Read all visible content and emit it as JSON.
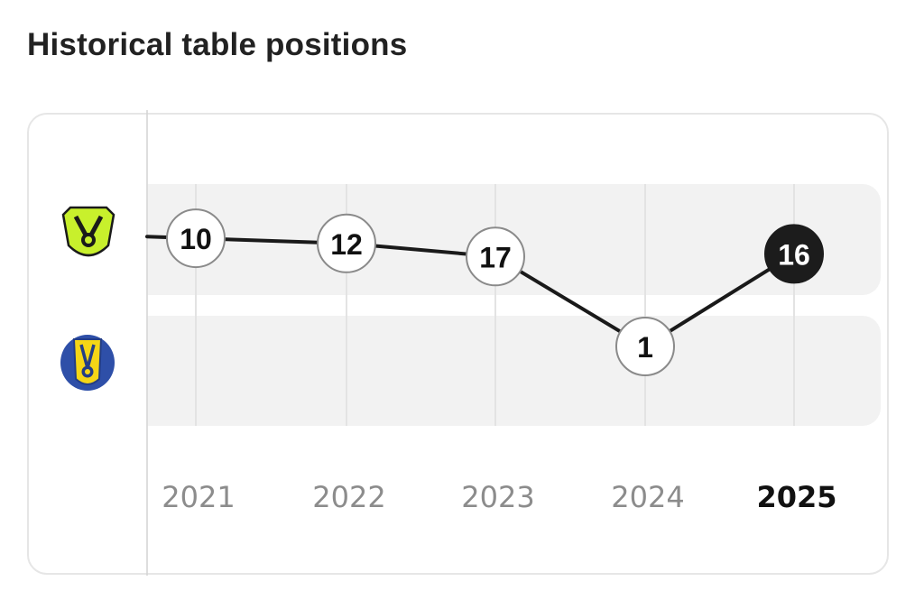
{
  "header": {
    "title": "Historical table positions"
  },
  "colors": {
    "line": "#1a1a1a",
    "band": "#f2f2f2",
    "gridline": "#e3e3e3",
    "marker_fill": "#ffffff",
    "marker_stroke": "#8a8a8a",
    "current_marker_fill": "#1c1c1c",
    "year_label": "#8c8c8c",
    "current_year_label": "#111111",
    "serie_a_badge": "#c8f02c",
    "serie_b_badge": "#f5d616"
  },
  "chart_data": {
    "type": "line",
    "categories": [
      "2021",
      "2022",
      "2023",
      "2024",
      "2025"
    ],
    "series": [
      {
        "values": [
          10,
          12,
          17,
          1,
          16
        ],
        "league": [
          "serie-a",
          "serie-a",
          "serie-a",
          "serie-b",
          "serie-a"
        ]
      }
    ],
    "highlight_category": "2025",
    "leagues": [
      {
        "id": "serie-a",
        "icon": "serie-a-badge-icon",
        "band": "top"
      },
      {
        "id": "serie-b",
        "icon": "serie-b-badge-icon",
        "band": "bottom"
      }
    ],
    "title": "",
    "xlabel": "",
    "ylabel": "",
    "grid": true
  }
}
